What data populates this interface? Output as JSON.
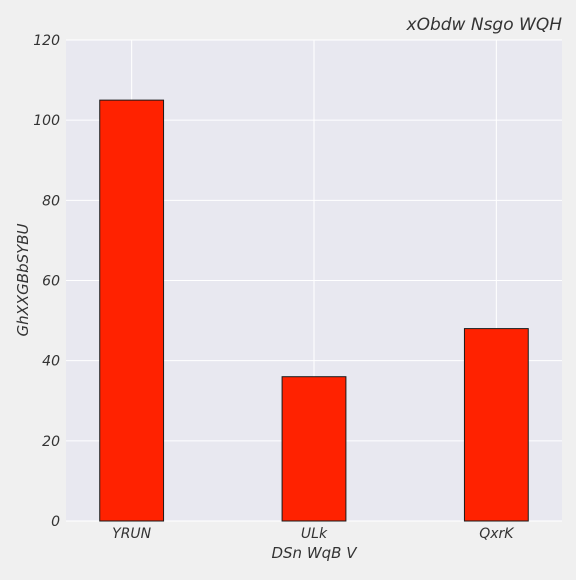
{
  "chart_data": {
    "type": "bar",
    "title": "xObdw Nsgo WQH",
    "xlabel": "DSn WqB V",
    "ylabel": "GhXXGBbSYBU",
    "categories": [
      "YRUN",
      "ULk",
      "QxrK"
    ],
    "values": [
      105,
      36,
      48
    ],
    "ylim": [
      0,
      120
    ],
    "yticks": [
      0,
      20,
      40,
      60,
      80,
      100,
      120
    ],
    "grid": true,
    "colors": {
      "bar_fill": "#ff2200",
      "bar_edge": "#1a1a1a",
      "plot_background": "#e8e8f0",
      "figure_background": "#f0f0f0",
      "grid": "#ffffff"
    }
  }
}
